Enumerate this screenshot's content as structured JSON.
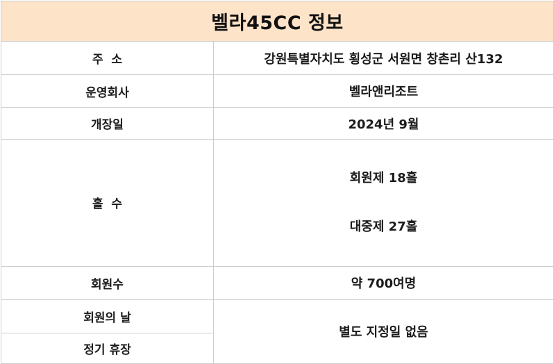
{
  "title": "벨라45CC 정보",
  "colors": {
    "title_background": "#fde3c8",
    "border": "#cdcdcd",
    "text": "#1b1b1b"
  },
  "table": {
    "rows": [
      {
        "label": "주  소",
        "value": "강원특별자치도 횡성군 서원면 창촌리 산132"
      },
      {
        "label": "운영회사",
        "value": "벨라앤리조트"
      },
      {
        "label": "개장일",
        "value": "2024년 9월"
      },
      {
        "label": "홀  수",
        "value_lines": [
          "회원제 18홀",
          "대중제 27홀"
        ]
      },
      {
        "label": "회원수",
        "value": "약 700여명"
      },
      {
        "label": "회원의 날"
      },
      {
        "label": "정기 휴장"
      }
    ],
    "merged_value": "별도 지정일 없음"
  }
}
